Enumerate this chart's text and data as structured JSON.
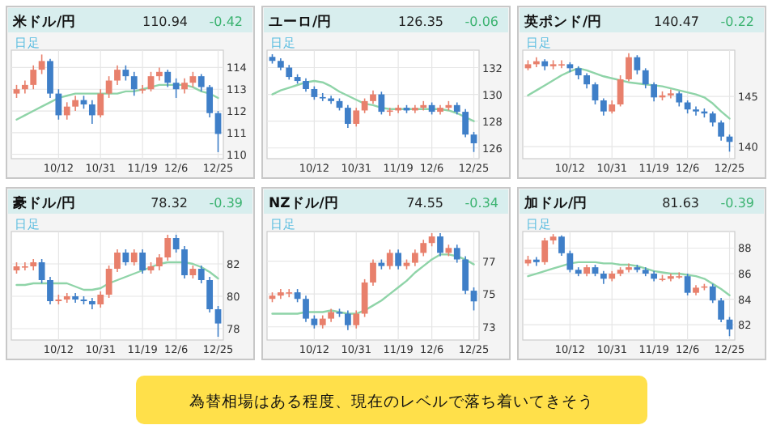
{
  "chart_data": [
    {
      "type": "candlestick",
      "title": "米ドル/円",
      "annotations": [
        "110.94",
        "-0.42",
        "日足"
      ],
      "categories": [
        null,
        null,
        null,
        null,
        null,
        "10/12",
        null,
        null,
        null,
        null,
        "10/31",
        null,
        null,
        null,
        null,
        "11/19",
        null,
        null,
        null,
        "12/6",
        null,
        null,
        null,
        null,
        "12/25"
      ],
      "ohlc": [
        [
          112.8,
          113.2,
          112.6,
          113.0
        ],
        [
          113.0,
          113.4,
          112.8,
          113.2
        ],
        [
          113.2,
          114.1,
          113.0,
          113.9
        ],
        [
          113.9,
          114.6,
          113.7,
          114.3
        ],
        [
          114.3,
          114.4,
          112.6,
          112.8
        ],
        [
          112.8,
          113.0,
          111.6,
          111.8
        ],
        [
          111.8,
          112.4,
          111.6,
          112.2
        ],
        [
          112.2,
          112.7,
          112.0,
          112.5
        ],
        [
          112.5,
          112.7,
          112.1,
          112.3
        ],
        [
          112.3,
          112.5,
          111.4,
          111.8
        ],
        [
          111.8,
          113.0,
          111.7,
          112.8
        ],
        [
          112.8,
          113.6,
          112.6,
          113.4
        ],
        [
          113.4,
          114.1,
          113.2,
          113.9
        ],
        [
          113.9,
          114.1,
          113.4,
          113.6
        ],
        [
          113.6,
          113.8,
          112.7,
          113.0
        ],
        [
          113.0,
          113.2,
          112.8,
          113.0
        ],
        [
          113.0,
          113.8,
          112.9,
          113.6
        ],
        [
          113.6,
          114.0,
          113.4,
          113.8
        ],
        [
          113.8,
          113.9,
          113.1,
          113.3
        ],
        [
          113.3,
          113.5,
          112.6,
          113.0
        ],
        [
          113.0,
          113.5,
          112.8,
          113.3
        ],
        [
          113.3,
          113.8,
          113.1,
          113.6
        ],
        [
          113.6,
          113.7,
          112.9,
          113.1
        ],
        [
          113.1,
          113.2,
          111.7,
          111.9
        ],
        [
          111.9,
          112.0,
          110.1,
          110.94
        ]
      ],
      "series": [
        {
          "type": "line",
          "color": "#8fd4a8",
          "values": [
            111.6,
            111.8,
            112.0,
            112.2,
            112.4,
            112.6,
            112.7,
            112.8,
            112.8,
            112.8,
            112.8,
            112.8,
            112.8,
            112.9,
            112.9,
            113.0,
            113.1,
            113.2,
            113.2,
            113.2,
            113.2,
            113.1,
            112.9,
            112.8,
            112.6
          ]
        }
      ],
      "ylim": [
        109.8,
        114.8
      ],
      "yticks": [
        110,
        111,
        112,
        113,
        114
      ],
      "grid": true
    },
    {
      "type": "candlestick",
      "title": "ユーロ/円",
      "annotations": [
        "126.35",
        "-0.06",
        "日足"
      ],
      "categories": [
        null,
        null,
        null,
        null,
        null,
        "10/12",
        null,
        null,
        null,
        null,
        "10/31",
        null,
        null,
        null,
        null,
        "11/19",
        null,
        null,
        null,
        "12/6",
        null,
        null,
        null,
        null,
        "12/25"
      ],
      "ohlc": [
        [
          132.8,
          133.0,
          132.3,
          132.5
        ],
        [
          132.5,
          132.7,
          131.8,
          132.0
        ],
        [
          132.0,
          132.2,
          131.1,
          131.3
        ],
        [
          131.3,
          131.5,
          130.8,
          131.0
        ],
        [
          131.0,
          131.2,
          130.2,
          130.4
        ],
        [
          130.4,
          130.6,
          129.6,
          129.8
        ],
        [
          129.8,
          130.1,
          129.5,
          129.7
        ],
        [
          129.7,
          129.9,
          129.3,
          129.5
        ],
        [
          129.5,
          129.7,
          128.8,
          129.0
        ],
        [
          129.0,
          129.2,
          127.5,
          127.8
        ],
        [
          127.8,
          129.0,
          127.6,
          128.8
        ],
        [
          128.8,
          129.7,
          128.6,
          129.5
        ],
        [
          129.5,
          130.3,
          129.3,
          130.0
        ],
        [
          130.0,
          130.2,
          128.5,
          128.7
        ],
        [
          128.7,
          129.0,
          128.4,
          128.8
        ],
        [
          128.8,
          129.2,
          128.6,
          129.0
        ],
        [
          129.0,
          129.2,
          128.6,
          128.8
        ],
        [
          128.8,
          129.2,
          128.6,
          129.0
        ],
        [
          129.0,
          129.5,
          128.8,
          129.2
        ],
        [
          129.2,
          129.4,
          128.5,
          128.7
        ],
        [
          128.7,
          129.2,
          128.5,
          129.0
        ],
        [
          129.0,
          129.5,
          128.8,
          129.2
        ],
        [
          129.2,
          129.4,
          128.5,
          128.7
        ],
        [
          128.7,
          128.9,
          126.8,
          127.0
        ],
        [
          127.0,
          127.2,
          125.7,
          126.35
        ]
      ],
      "series": [
        {
          "type": "line",
          "color": "#8fd4a8",
          "values": [
            130.0,
            130.3,
            130.5,
            130.7,
            130.9,
            131.0,
            130.9,
            130.6,
            130.2,
            129.9,
            129.6,
            129.3,
            129.2,
            129.0,
            128.9,
            128.9,
            128.9,
            128.9,
            128.9,
            128.9,
            128.9,
            128.8,
            128.6,
            128.3,
            128.0
          ]
        }
      ],
      "ylim": [
        125.2,
        133.3
      ],
      "yticks": [
        126,
        128,
        130,
        132
      ],
      "grid": true
    },
    {
      "type": "candlestick",
      "title": "英ポンド/円",
      "annotations": [
        "140.47",
        "-0.22",
        "日足"
      ],
      "categories": [
        null,
        null,
        null,
        null,
        null,
        "10/12",
        null,
        null,
        null,
        null,
        "10/31",
        null,
        null,
        null,
        null,
        "11/19",
        null,
        null,
        null,
        "12/6",
        null,
        null,
        null,
        null,
        "12/25"
      ],
      "ohlc": [
        [
          147.8,
          148.6,
          147.6,
          148.2
        ],
        [
          148.2,
          148.9,
          147.9,
          148.5
        ],
        [
          148.5,
          148.7,
          147.6,
          148.0
        ],
        [
          148.0,
          148.6,
          147.7,
          148.2
        ],
        [
          148.2,
          148.6,
          147.8,
          148.2
        ],
        [
          148.2,
          148.4,
          147.4,
          147.8
        ],
        [
          147.8,
          148.0,
          146.7,
          147.1
        ],
        [
          147.1,
          147.3,
          145.8,
          146.2
        ],
        [
          146.2,
          146.4,
          144.2,
          144.6
        ],
        [
          144.6,
          144.8,
          143.1,
          143.5
        ],
        [
          143.5,
          144.6,
          143.3,
          144.2
        ],
        [
          144.2,
          147.1,
          144.0,
          146.7
        ],
        [
          146.7,
          149.3,
          146.5,
          148.9
        ],
        [
          148.9,
          149.1,
          147.2,
          147.6
        ],
        [
          147.6,
          147.8,
          145.8,
          146.2
        ],
        [
          146.2,
          146.4,
          144.5,
          144.9
        ],
        [
          144.9,
          145.5,
          144.6,
          145.1
        ],
        [
          145.1,
          145.7,
          144.8,
          145.3
        ],
        [
          145.3,
          145.5,
          144.0,
          144.4
        ],
        [
          144.4,
          144.6,
          143.3,
          143.7
        ],
        [
          143.7,
          144.0,
          143.1,
          143.5
        ],
        [
          143.5,
          143.8,
          142.9,
          143.3
        ],
        [
          143.3,
          143.5,
          142.0,
          142.4
        ],
        [
          142.4,
          142.6,
          140.6,
          141.0
        ],
        [
          141.0,
          141.2,
          139.5,
          140.47
        ]
      ],
      "series": [
        {
          "type": "line",
          "color": "#8fd4a8",
          "values": [
            145.1,
            145.6,
            146.1,
            146.6,
            147.1,
            147.5,
            147.8,
            147.6,
            147.3,
            147.0,
            146.8,
            146.6,
            146.4,
            146.3,
            146.2,
            146.1,
            146.0,
            145.8,
            145.6,
            145.4,
            145.2,
            144.9,
            144.3,
            143.5,
            142.8
          ]
        }
      ],
      "ylim": [
        138.8,
        149.6
      ],
      "yticks": [
        140,
        145
      ],
      "grid": true
    },
    {
      "type": "candlestick",
      "title": "豪ドル/円",
      "annotations": [
        "78.32",
        "-0.39",
        "日足"
      ],
      "categories": [
        null,
        null,
        null,
        null,
        null,
        "10/12",
        null,
        null,
        null,
        null,
        "10/31",
        null,
        null,
        null,
        null,
        "11/19",
        null,
        null,
        null,
        "12/6",
        null,
        null,
        null,
        null,
        "12/25"
      ],
      "ohlc": [
        [
          81.6,
          82.1,
          81.4,
          81.85
        ],
        [
          81.85,
          82.1,
          81.6,
          81.85
        ],
        [
          81.85,
          82.3,
          81.6,
          82.1
        ],
        [
          82.1,
          82.3,
          80.8,
          81.0
        ],
        [
          81.0,
          81.2,
          79.5,
          79.7
        ],
        [
          79.7,
          80.1,
          79.5,
          79.8
        ],
        [
          79.8,
          80.2,
          79.6,
          80.0
        ],
        [
          80.0,
          80.2,
          79.6,
          79.8
        ],
        [
          79.8,
          80.0,
          79.5,
          79.7
        ],
        [
          79.7,
          79.9,
          79.2,
          79.5
        ],
        [
          79.5,
          80.3,
          79.3,
          80.1
        ],
        [
          80.1,
          81.9,
          79.9,
          81.7
        ],
        [
          81.7,
          82.9,
          81.5,
          82.7
        ],
        [
          82.7,
          82.9,
          81.9,
          82.1
        ],
        [
          82.1,
          82.9,
          81.9,
          82.7
        ],
        [
          82.7,
          82.9,
          81.4,
          81.6
        ],
        [
          81.6,
          82.1,
          81.4,
          81.85
        ],
        [
          81.85,
          82.6,
          81.6,
          82.4
        ],
        [
          82.4,
          83.8,
          82.2,
          83.6
        ],
        [
          83.6,
          83.8,
          82.7,
          82.9
        ],
        [
          82.9,
          83.1,
          81.1,
          81.3
        ],
        [
          81.3,
          81.9,
          81.1,
          81.7
        ],
        [
          81.7,
          81.9,
          80.8,
          81.0
        ],
        [
          81.0,
          81.2,
          79.0,
          79.2
        ],
        [
          79.2,
          79.4,
          77.5,
          78.32
        ]
      ],
      "series": [
        {
          "type": "line",
          "color": "#8fd4a8",
          "values": [
            80.7,
            80.7,
            80.8,
            80.8,
            80.8,
            80.8,
            80.8,
            80.6,
            80.4,
            80.4,
            80.5,
            80.8,
            81.0,
            81.2,
            81.4,
            81.6,
            81.8,
            82.0,
            82.1,
            82.1,
            82.1,
            82.0,
            81.8,
            81.5,
            81.1
          ]
        }
      ],
      "ylim": [
        77.3,
        84.0
      ],
      "yticks": [
        78,
        80,
        82
      ],
      "grid": true
    },
    {
      "type": "candlestick",
      "title": "NZドル/円",
      "annotations": [
        "74.55",
        "-0.34",
        "日足"
      ],
      "categories": [
        null,
        null,
        null,
        null,
        null,
        "10/12",
        null,
        null,
        null,
        null,
        "10/31",
        null,
        null,
        null,
        null,
        "11/19",
        null,
        null,
        null,
        "12/6",
        null,
        null,
        null,
        null,
        "12/25"
      ],
      "ohlc": [
        [
          74.7,
          75.1,
          74.5,
          74.9
        ],
        [
          74.9,
          75.3,
          74.7,
          75.1
        ],
        [
          75.1,
          75.3,
          74.8,
          75.1
        ],
        [
          75.1,
          75.3,
          74.5,
          74.7
        ],
        [
          74.7,
          74.9,
          73.3,
          73.5
        ],
        [
          73.5,
          73.7,
          72.9,
          73.1
        ],
        [
          73.1,
          73.7,
          72.9,
          73.5
        ],
        [
          73.5,
          74.1,
          73.3,
          73.9
        ],
        [
          73.9,
          74.1,
          73.6,
          73.8
        ],
        [
          73.8,
          74.0,
          72.8,
          73.1
        ],
        [
          73.1,
          74.0,
          72.9,
          73.8
        ],
        [
          73.8,
          75.9,
          73.6,
          75.7
        ],
        [
          75.7,
          77.1,
          75.5,
          76.9
        ],
        [
          76.9,
          77.1,
          76.5,
          76.7
        ],
        [
          76.7,
          77.7,
          76.5,
          77.5
        ],
        [
          77.5,
          77.7,
          76.5,
          76.7
        ],
        [
          76.7,
          77.1,
          76.5,
          76.9
        ],
        [
          76.9,
          77.7,
          76.7,
          77.5
        ],
        [
          77.5,
          78.3,
          77.3,
          78.1
        ],
        [
          78.1,
          78.7,
          77.9,
          78.5
        ],
        [
          78.5,
          78.7,
          77.3,
          77.5
        ],
        [
          77.5,
          78.0,
          77.3,
          77.8
        ],
        [
          77.8,
          78.0,
          76.9,
          77.1
        ],
        [
          77.1,
          77.3,
          75.0,
          75.2
        ],
        [
          75.2,
          75.4,
          74.0,
          74.55
        ]
      ],
      "series": [
        {
          "type": "line",
          "color": "#8fd4a8",
          "values": [
            73.8,
            73.8,
            73.8,
            73.8,
            73.9,
            73.9,
            73.9,
            74.0,
            73.9,
            73.8,
            73.8,
            74.0,
            74.3,
            74.6,
            75.0,
            75.4,
            75.8,
            76.3,
            76.7,
            77.1,
            77.4,
            77.4,
            77.3,
            77.1,
            76.8
          ]
        }
      ],
      "ylim": [
        72.2,
        78.8
      ],
      "yticks": [
        73,
        75,
        77
      ],
      "grid": true
    },
    {
      "type": "candlestick",
      "title": "加ドル/円",
      "annotations": [
        "81.63",
        "-0.39",
        "日足"
      ],
      "categories": [
        null,
        null,
        null,
        null,
        null,
        "10/12",
        null,
        null,
        null,
        null,
        "10/31",
        null,
        null,
        null,
        null,
        "11/19",
        null,
        null,
        null,
        "12/6",
        null,
        null,
        null,
        null,
        "12/25"
      ],
      "ohlc": [
        [
          86.8,
          87.4,
          86.6,
          87.1
        ],
        [
          87.1,
          87.3,
          86.6,
          86.9
        ],
        [
          86.9,
          88.8,
          86.7,
          88.6
        ],
        [
          88.6,
          89.1,
          88.3,
          88.9
        ],
        [
          88.9,
          89.0,
          87.4,
          87.6
        ],
        [
          87.6,
          87.8,
          86.1,
          86.3
        ],
        [
          86.3,
          86.5,
          85.8,
          86.0
        ],
        [
          86.0,
          86.7,
          85.8,
          86.5
        ],
        [
          86.5,
          86.7,
          85.8,
          86.0
        ],
        [
          86.0,
          86.2,
          85.2,
          85.6
        ],
        [
          85.6,
          86.2,
          85.4,
          86.0
        ],
        [
          86.0,
          86.5,
          85.8,
          86.3
        ],
        [
          86.3,
          86.8,
          86.1,
          86.5
        ],
        [
          86.5,
          86.7,
          86.1,
          86.3
        ],
        [
          86.3,
          86.5,
          85.8,
          86.0
        ],
        [
          86.0,
          86.2,
          85.4,
          85.6
        ],
        [
          85.6,
          85.9,
          85.4,
          85.6
        ],
        [
          85.6,
          86.0,
          85.4,
          85.8
        ],
        [
          85.8,
          86.1,
          85.6,
          85.8
        ],
        [
          85.8,
          86.0,
          84.3,
          84.5
        ],
        [
          84.5,
          85.1,
          84.3,
          84.9
        ],
        [
          84.9,
          85.2,
          84.7,
          85.0
        ],
        [
          85.0,
          85.2,
          83.7,
          83.9
        ],
        [
          83.9,
          84.1,
          82.2,
          82.4
        ],
        [
          82.4,
          82.6,
          81.1,
          81.63
        ]
      ],
      "series": [
        {
          "type": "line",
          "color": "#8fd4a8",
          "values": [
            85.8,
            86.0,
            86.2,
            86.4,
            86.6,
            86.8,
            86.9,
            86.9,
            86.9,
            86.8,
            86.8,
            86.7,
            86.7,
            86.6,
            86.4,
            86.2,
            86.1,
            86.0,
            86.0,
            85.9,
            85.8,
            85.6,
            85.2,
            84.8,
            84.3
          ]
        }
      ],
      "ylim": [
        80.8,
        89.3
      ],
      "yticks": [
        82,
        84,
        86,
        88
      ],
      "grid": true
    },
    {
      "type": "other",
      "annotations": [
        "為替相場はある程度、現在のレベルで落ち着いてきそう"
      ]
    }
  ]
}
